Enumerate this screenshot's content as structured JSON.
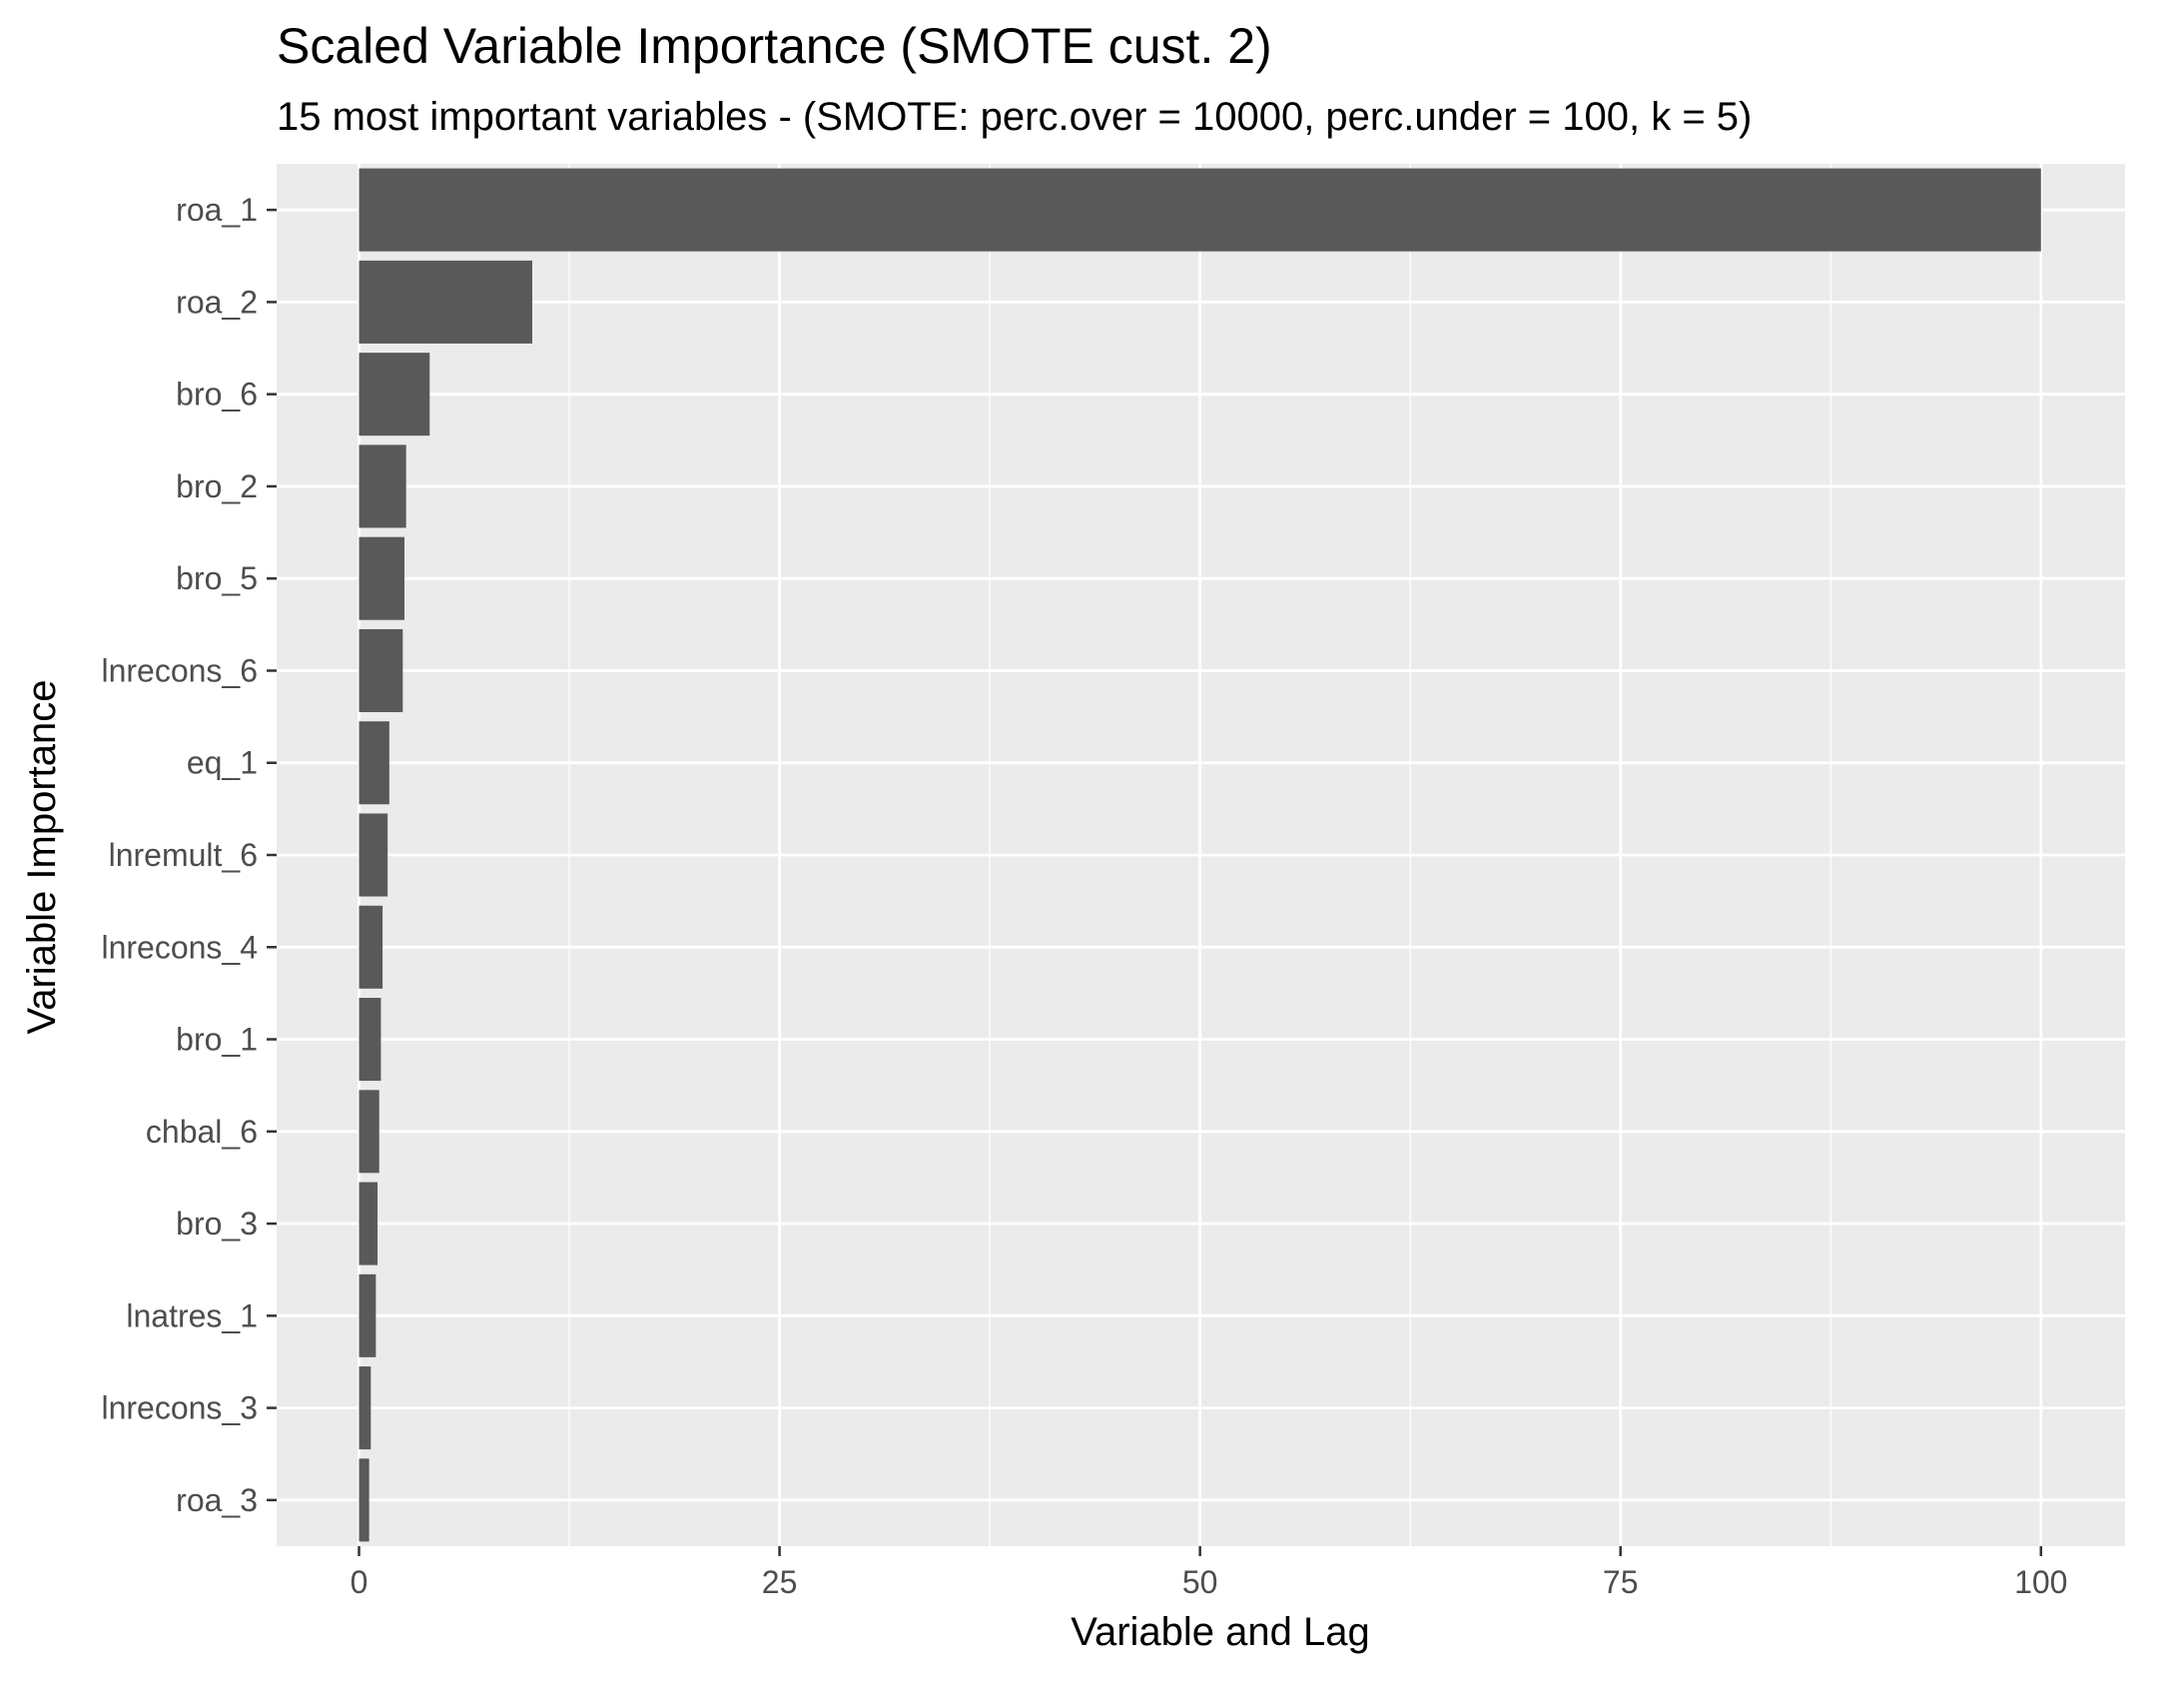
{
  "chart_data": {
    "type": "bar",
    "orientation": "horizontal",
    "title": "Scaled Variable Importance (SMOTE cust. 2)",
    "subtitle": "15 most important variables - (SMOTE: perc.over = 10000, perc.under = 100, k = 5)",
    "xlabel": "Variable and Lag",
    "ylabel": "Variable Importance",
    "categories": [
      "roa_1",
      "roa_2",
      "bro_6",
      "bro_2",
      "bro_5",
      "lnrecons_6",
      "eq_1",
      "lnremult_6",
      "lnrecons_4",
      "bro_1",
      "chbal_6",
      "bro_3",
      "lnatres_1",
      "lnrecons_3",
      "roa_3"
    ],
    "values": [
      100,
      10.3,
      4.2,
      2.8,
      2.7,
      2.6,
      1.8,
      1.7,
      1.4,
      1.3,
      1.2,
      1.1,
      1.0,
      0.7,
      0.6
    ],
    "xlim": [
      -4.9,
      105
    ],
    "xticks": [
      0,
      25,
      50,
      75,
      100
    ],
    "xtick_labels": [
      "0",
      "25",
      "50",
      "75",
      "100"
    ],
    "grid": true,
    "colors": {
      "bar": "#595959",
      "panel_background": "#ebebeb",
      "grid": "#ffffff",
      "tick": "#333333"
    }
  }
}
